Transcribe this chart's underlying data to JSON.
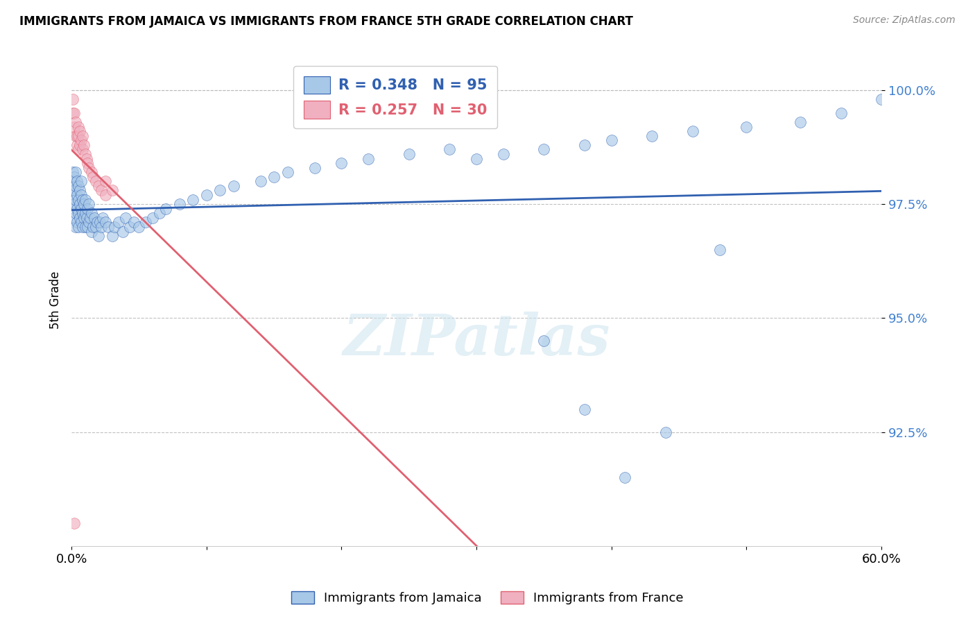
{
  "title": "IMMIGRANTS FROM JAMAICA VS IMMIGRANTS FROM FRANCE 5TH GRADE CORRELATION CHART",
  "source": "Source: ZipAtlas.com",
  "ylabel": "5th Grade",
  "legend_label1": "Immigrants from Jamaica",
  "legend_label2": "Immigrants from France",
  "R1": 0.348,
  "N1": 95,
  "R2": 0.257,
  "N2": 30,
  "color1": "#a8c8e8",
  "color2": "#f0b0c0",
  "line_color1": "#3060b0",
  "line_color2": "#e06070",
  "ytick_color": "#4080d0",
  "xmin": 0.0,
  "xmax": 0.6,
  "ymin": 90.0,
  "ymax": 100.8,
  "yticks": [
    92.5,
    95.0,
    97.5,
    100.0
  ],
  "watermark": "ZIPatlas",
  "blue_x": [
    0.001,
    0.001,
    0.001,
    0.001,
    0.002,
    0.002,
    0.002,
    0.002,
    0.003,
    0.003,
    0.003,
    0.003,
    0.003,
    0.004,
    0.004,
    0.004,
    0.004,
    0.005,
    0.005,
    0.005,
    0.005,
    0.006,
    0.006,
    0.006,
    0.007,
    0.007,
    0.007,
    0.007,
    0.008,
    0.008,
    0.008,
    0.009,
    0.009,
    0.01,
    0.01,
    0.01,
    0.011,
    0.012,
    0.012,
    0.013,
    0.013,
    0.014,
    0.015,
    0.015,
    0.016,
    0.017,
    0.018,
    0.019,
    0.02,
    0.021,
    0.022,
    0.023,
    0.025,
    0.027,
    0.03,
    0.032,
    0.035,
    0.038,
    0.04,
    0.043,
    0.046,
    0.05,
    0.055,
    0.06,
    0.065,
    0.07,
    0.08,
    0.09,
    0.1,
    0.11,
    0.12,
    0.14,
    0.15,
    0.16,
    0.18,
    0.2,
    0.22,
    0.25,
    0.28,
    0.3,
    0.32,
    0.35,
    0.38,
    0.4,
    0.43,
    0.46,
    0.5,
    0.54,
    0.57,
    0.6,
    0.35,
    0.38,
    0.41,
    0.44,
    0.48
  ],
  "blue_y": [
    97.5,
    97.8,
    98.0,
    98.2,
    97.2,
    97.5,
    97.8,
    98.1,
    97.0,
    97.3,
    97.6,
    97.9,
    98.2,
    97.1,
    97.4,
    97.7,
    98.0,
    97.0,
    97.3,
    97.6,
    97.9,
    97.2,
    97.5,
    97.8,
    97.1,
    97.4,
    97.7,
    98.0,
    97.0,
    97.3,
    97.6,
    97.2,
    97.5,
    97.0,
    97.3,
    97.6,
    97.2,
    97.0,
    97.4,
    97.1,
    97.5,
    97.2,
    96.9,
    97.3,
    97.0,
    97.2,
    97.0,
    97.1,
    96.8,
    97.1,
    97.0,
    97.2,
    97.1,
    97.0,
    96.8,
    97.0,
    97.1,
    96.9,
    97.2,
    97.0,
    97.1,
    97.0,
    97.1,
    97.2,
    97.3,
    97.4,
    97.5,
    97.6,
    97.7,
    97.8,
    97.9,
    98.0,
    98.1,
    98.2,
    98.3,
    98.4,
    98.5,
    98.6,
    98.7,
    98.5,
    98.6,
    98.7,
    98.8,
    98.9,
    99.0,
    99.1,
    99.2,
    99.3,
    99.5,
    99.8,
    94.5,
    93.0,
    91.5,
    92.5,
    96.5
  ],
  "pink_x": [
    0.001,
    0.001,
    0.002,
    0.002,
    0.003,
    0.003,
    0.004,
    0.004,
    0.005,
    0.005,
    0.005,
    0.006,
    0.006,
    0.007,
    0.008,
    0.008,
    0.009,
    0.01,
    0.011,
    0.012,
    0.013,
    0.015,
    0.016,
    0.018,
    0.02,
    0.022,
    0.025,
    0.025,
    0.03,
    0.002
  ],
  "pink_y": [
    99.5,
    99.8,
    99.2,
    99.5,
    99.0,
    99.3,
    98.8,
    99.0,
    98.7,
    99.0,
    99.2,
    98.8,
    99.1,
    98.9,
    98.7,
    99.0,
    98.8,
    98.6,
    98.5,
    98.4,
    98.3,
    98.2,
    98.1,
    98.0,
    97.9,
    97.8,
    97.7,
    98.0,
    97.8,
    90.5
  ]
}
